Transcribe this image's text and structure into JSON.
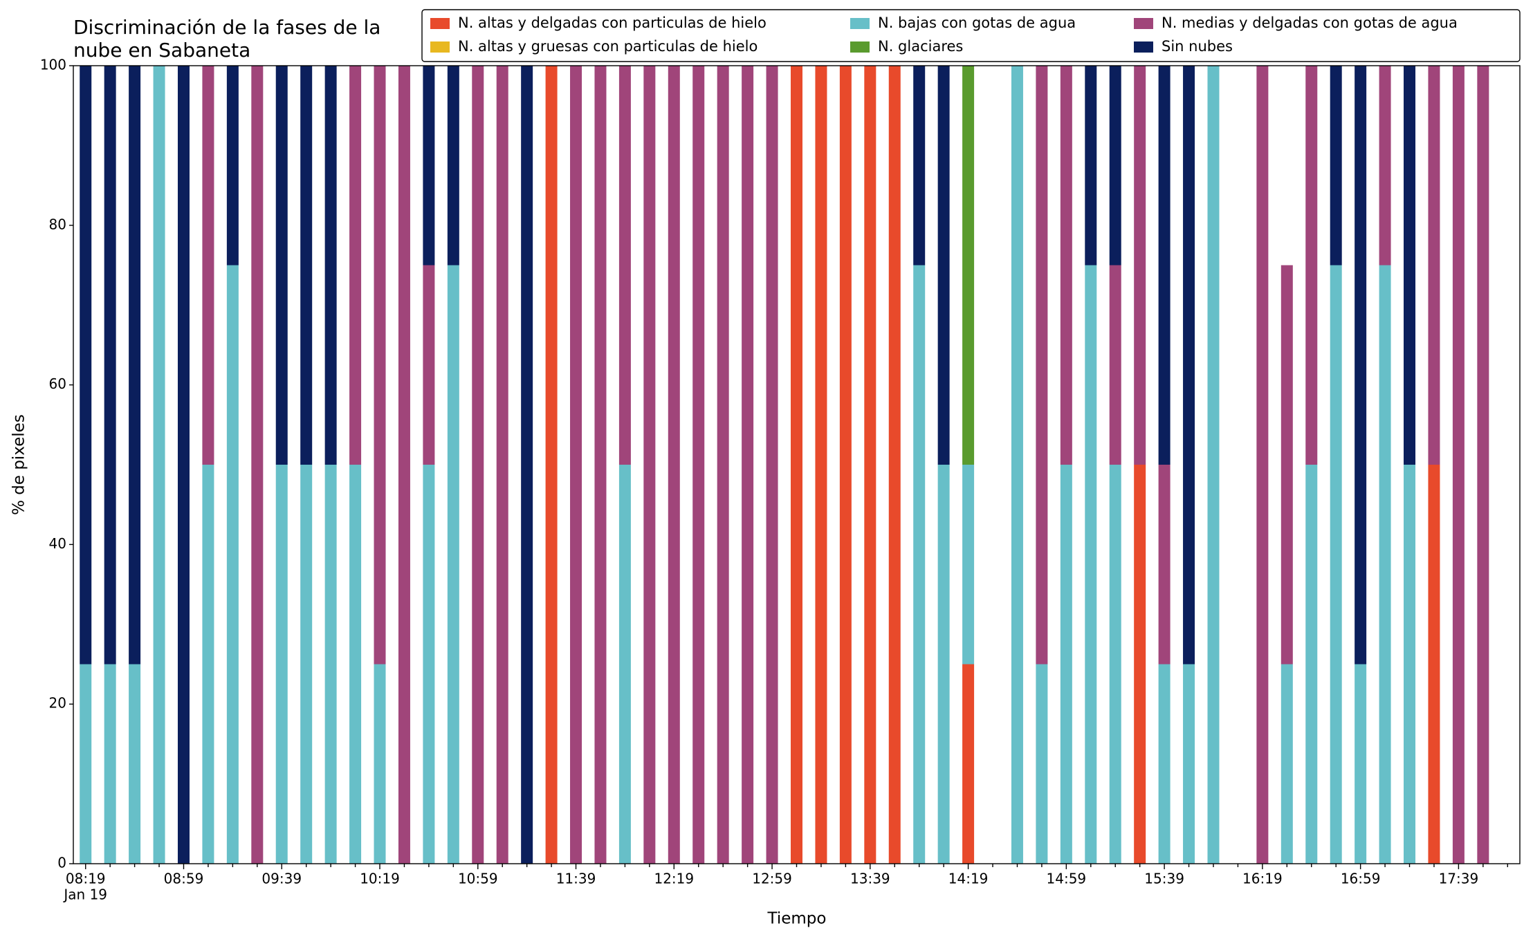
{
  "chart_data": {
    "type": "stacked_bar",
    "title": [
      "Discriminación de la fases de la",
      "nube en Sabaneta"
    ],
    "x_label": "Tiempo",
    "y_label": "% de pixeles",
    "x_sublabel": "Jan 19",
    "categories": [
      "08:19",
      null,
      null,
      null,
      "08:59",
      null,
      null,
      null,
      "09:39",
      null,
      null,
      null,
      "10:19",
      null,
      null,
      null,
      "10:59",
      null,
      null,
      null,
      "11:39",
      null,
      null,
      null,
      "12:19",
      null,
      null,
      null,
      "12:59",
      null,
      null,
      null,
      "13:39",
      null,
      null,
      null,
      "14:19",
      null,
      null,
      null,
      "14:59",
      null,
      null,
      null,
      "15:39",
      null,
      null,
      null,
      "16:19",
      null,
      null,
      null,
      "16:59",
      null,
      null,
      null,
      "17:39",
      null,
      null
    ],
    "ylim": [
      0,
      100
    ],
    "yticks": [
      0,
      20,
      40,
      60,
      80,
      100
    ],
    "grid": false,
    "legend": "top right",
    "series": [
      {
        "name": "N. altas y delgadas con particulas de hielo",
        "color": "#e84a2b",
        "values": [
          0,
          0,
          0,
          0,
          0,
          0,
          0,
          0,
          0,
          0,
          0,
          0,
          0,
          0,
          0,
          0,
          0,
          0,
          0,
          100,
          0,
          0,
          0,
          0,
          0,
          0,
          0,
          0,
          0,
          100,
          100,
          100,
          100,
          100,
          0,
          0,
          25,
          0,
          0,
          0,
          0,
          0,
          0,
          50,
          0,
          0,
          0,
          0,
          0,
          0,
          0,
          0,
          0,
          0,
          0,
          50,
          0,
          0,
          0
        ]
      },
      {
        "name": "N. altas y gruesas con particulas de hielo",
        "color": "#e8b820",
        "values": [
          0,
          0,
          0,
          0,
          0,
          0,
          0,
          0,
          0,
          0,
          0,
          0,
          0,
          0,
          0,
          0,
          0,
          0,
          0,
          0,
          0,
          0,
          0,
          0,
          0,
          0,
          0,
          0,
          0,
          0,
          0,
          0,
          0,
          0,
          0,
          0,
          0,
          0,
          0,
          0,
          0,
          0,
          0,
          0,
          0,
          0,
          0,
          0,
          0,
          0,
          0,
          0,
          0,
          0,
          0,
          0,
          0,
          0,
          0
        ]
      },
      {
        "name": "N. bajas con gotas de agua",
        "color": "#67bfc8",
        "values": [
          25,
          25,
          25,
          100,
          0,
          50,
          75,
          0,
          50,
          50,
          50,
          50,
          25,
          0,
          50,
          75,
          0,
          0,
          0,
          0,
          0,
          0,
          50,
          0,
          0,
          0,
          0,
          0,
          0,
          0,
          0,
          0,
          0,
          0,
          75,
          50,
          25,
          0,
          100,
          25,
          50,
          75,
          50,
          0,
          25,
          25,
          100,
          0,
          0,
          25,
          50,
          75,
          25,
          75,
          50,
          0,
          0,
          0,
          0
        ]
      },
      {
        "name": "N. glaciares",
        "color": "#5a9b2e",
        "values": [
          0,
          0,
          0,
          0,
          0,
          0,
          0,
          0,
          0,
          0,
          0,
          0,
          0,
          0,
          0,
          0,
          0,
          0,
          0,
          0,
          0,
          0,
          0,
          0,
          0,
          0,
          0,
          0,
          0,
          0,
          0,
          0,
          0,
          0,
          0,
          0,
          50,
          0,
          0,
          0,
          0,
          0,
          0,
          0,
          0,
          0,
          0,
          0,
          0,
          0,
          0,
          0,
          0,
          0,
          0,
          0,
          0,
          0,
          0
        ]
      },
      {
        "name": "N. medias y delgadas con gotas de agua",
        "color": "#a0457a",
        "values": [
          0,
          0,
          0,
          0,
          0,
          50,
          0,
          100,
          0,
          0,
          0,
          50,
          75,
          100,
          25,
          0,
          100,
          100,
          0,
          0,
          100,
          100,
          50,
          100,
          100,
          100,
          100,
          100,
          100,
          0,
          0,
          0,
          0,
          0,
          0,
          0,
          0,
          0,
          0,
          75,
          50,
          0,
          25,
          50,
          25,
          0,
          0,
          0,
          100,
          50,
          50,
          0,
          0,
          25,
          0,
          50,
          100,
          100,
          0
        ]
      },
      {
        "name": "Sin nubes",
        "color": "#0b1f5c",
        "values": [
          75,
          75,
          75,
          0,
          100,
          0,
          25,
          0,
          50,
          50,
          50,
          0,
          0,
          0,
          25,
          25,
          0,
          0,
          100,
          0,
          0,
          0,
          0,
          0,
          0,
          0,
          0,
          0,
          0,
          0,
          0,
          0,
          0,
          0,
          25,
          50,
          0,
          0,
          0,
          0,
          0,
          25,
          25,
          0,
          50,
          75,
          0,
          0,
          0,
          0,
          0,
          25,
          75,
          0,
          50,
          0,
          0,
          0,
          0
        ]
      }
    ]
  }
}
